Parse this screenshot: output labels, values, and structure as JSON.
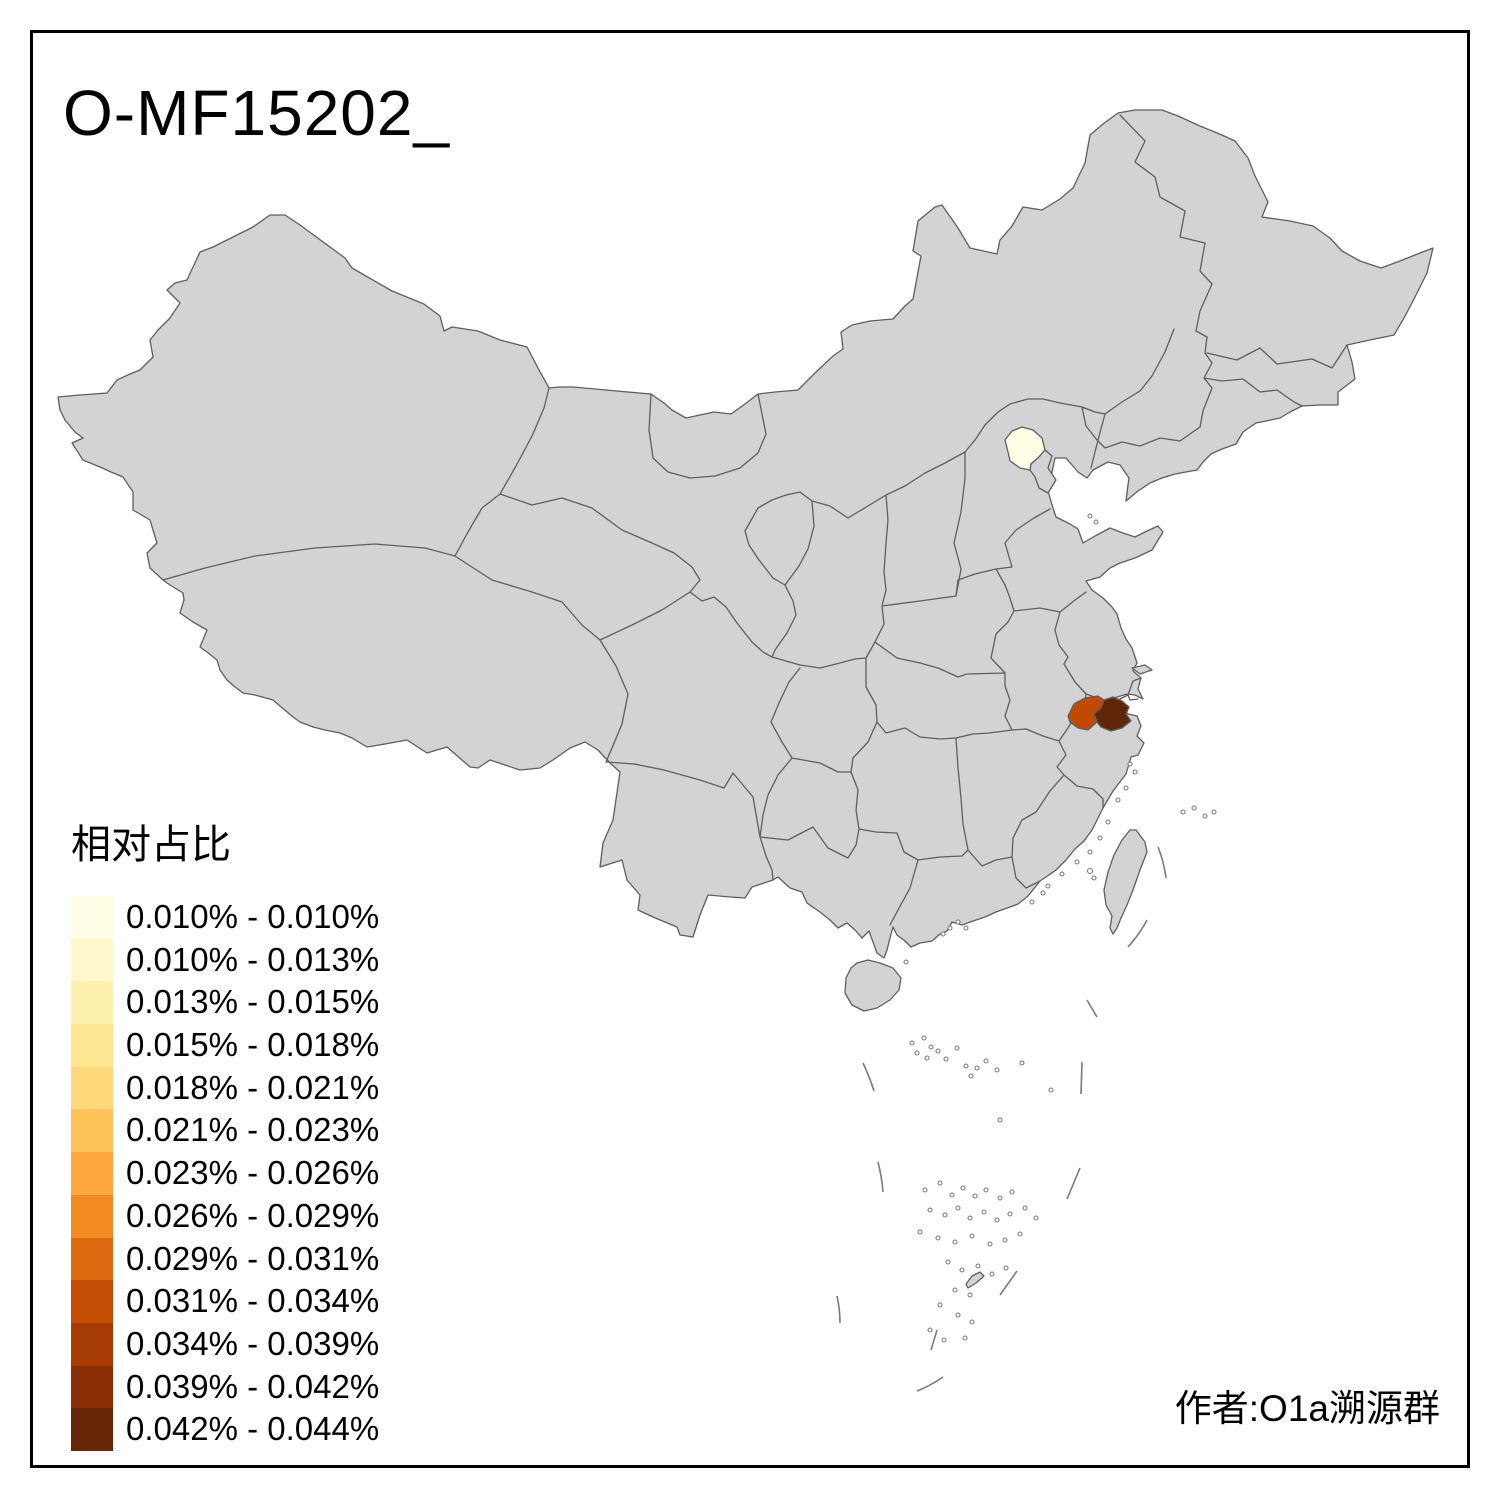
{
  "title": "O-MF15202_",
  "author_credit": "作者:O1a溯源群",
  "legend": {
    "title": "相对占比",
    "items": [
      {
        "range": "0.010% - 0.010%",
        "color": "#FFFFE5"
      },
      {
        "range": "0.010% - 0.013%",
        "color": "#FFF8CC"
      },
      {
        "range": "0.013% - 0.015%",
        "color": "#FEF0AE"
      },
      {
        "range": "0.015% - 0.018%",
        "color": "#FEE592"
      },
      {
        "range": "0.018% - 0.021%",
        "color": "#FED87B"
      },
      {
        "range": "0.021% - 0.023%",
        "color": "#FEC45A"
      },
      {
        "range": "0.023% - 0.026%",
        "color": "#FDA93E"
      },
      {
        "range": "0.026% - 0.029%",
        "color": "#F28A22"
      },
      {
        "range": "0.029% - 0.031%",
        "color": "#DE6A12"
      },
      {
        "range": "0.031% - 0.034%",
        "color": "#C44D03"
      },
      {
        "range": "0.034% - 0.039%",
        "color": "#A63B03"
      },
      {
        "range": "0.039% - 0.042%",
        "color": "#8A2E05"
      },
      {
        "range": "0.042% - 0.044%",
        "color": "#662506"
      }
    ]
  },
  "map": {
    "base_fill": "#D3D3D3",
    "border_color": "#5E5E5E",
    "frame_color": "#000000",
    "sea_color": "#FFFFFF",
    "regions": [
      {
        "id": "beijing-region",
        "color": "#FFFFE5"
      },
      {
        "id": "west-zhejiang-region",
        "color": "#C04A04"
      },
      {
        "id": "east-zhejiang-region",
        "color": "#602608"
      }
    ]
  }
}
